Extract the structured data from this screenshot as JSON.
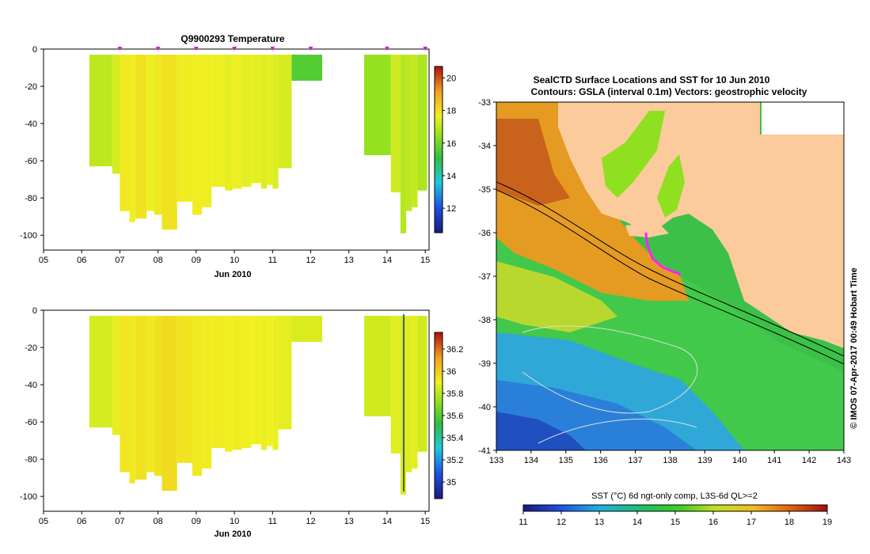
{
  "chart_data": [
    {
      "type": "heatmap",
      "title": "Q9900293  Temperature",
      "xlabel": "Jun 2010",
      "ylabel": "",
      "xticks": [
        "05",
        "06",
        "07",
        "08",
        "09",
        "10",
        "11",
        "12",
        "13",
        "14",
        "15"
      ],
      "xlim": [
        5,
        15.1
      ],
      "ylim": [
        -108,
        0
      ],
      "yticks": [
        "0",
        "-20",
        "-40",
        "-60",
        "-80",
        "-100"
      ],
      "ytick_values": [
        0,
        -20,
        -40,
        -60,
        -80,
        -100
      ],
      "colorbar": {
        "min": 10.5,
        "max": 20.7,
        "ticks": [
          "12",
          "14",
          "16",
          "18",
          "20"
        ],
        "tick_values": [
          12,
          14,
          16,
          18,
          20
        ]
      },
      "markers": [
        7,
        8,
        9,
        10,
        11,
        12,
        14,
        15
      ],
      "profiles": [
        {
          "x0": 6.2,
          "x1": 6.8,
          "depth": 63,
          "value": 17.0
        },
        {
          "x0": 6.8,
          "x1": 7.0,
          "depth": 67,
          "value": 17.3
        },
        {
          "x0": 7.0,
          "x1": 7.25,
          "depth": 87,
          "value": 17.8
        },
        {
          "x0": 7.25,
          "x1": 7.4,
          "depth": 93,
          "value": 17.6
        },
        {
          "x0": 7.4,
          "x1": 7.7,
          "depth": 91,
          "value": 17.9
        },
        {
          "x0": 7.7,
          "x1": 7.9,
          "depth": 87,
          "value": 17.6
        },
        {
          "x0": 7.9,
          "x1": 8.1,
          "depth": 89,
          "value": 17.8
        },
        {
          "x0": 8.1,
          "x1": 8.5,
          "depth": 97,
          "value": 17.9
        },
        {
          "x0": 8.5,
          "x1": 8.9,
          "depth": 82,
          "value": 17.7
        },
        {
          "x0": 8.9,
          "x1": 9.15,
          "depth": 89,
          "value": 17.7
        },
        {
          "x0": 9.15,
          "x1": 9.4,
          "depth": 85,
          "value": 17.6
        },
        {
          "x0": 9.4,
          "x1": 9.75,
          "depth": 74,
          "value": 17.6
        },
        {
          "x0": 9.75,
          "x1": 9.95,
          "depth": 76,
          "value": 17.5
        },
        {
          "x0": 9.95,
          "x1": 10.2,
          "depth": 75,
          "value": 17.6
        },
        {
          "x0": 10.2,
          "x1": 10.45,
          "depth": 74,
          "value": 17.5
        },
        {
          "x0": 10.45,
          "x1": 10.7,
          "depth": 72,
          "value": 17.5
        },
        {
          "x0": 10.7,
          "x1": 10.85,
          "depth": 75,
          "value": 17.4
        },
        {
          "x0": 10.85,
          "x1": 11.0,
          "depth": 73,
          "value": 17.5
        },
        {
          "x0": 11.0,
          "x1": 11.15,
          "depth": 75,
          "value": 17.4
        },
        {
          "x0": 11.15,
          "x1": 11.5,
          "depth": 64,
          "value": 17.3
        },
        {
          "x0": 11.5,
          "x1": 12.3,
          "depth": 17,
          "value": 15.6
        },
        {
          "x0": 13.4,
          "x1": 14.1,
          "depth": 57,
          "value": 16.5
        },
        {
          "x0": 14.1,
          "x1": 14.35,
          "depth": 77,
          "value": 17.2
        },
        {
          "x0": 14.35,
          "x1": 14.5,
          "depth": 99,
          "value": 16.9
        },
        {
          "x0": 14.5,
          "x1": 14.65,
          "depth": 87,
          "value": 17.0
        },
        {
          "x0": 14.65,
          "x1": 14.8,
          "depth": 85,
          "value": 17.1
        },
        {
          "x0": 14.8,
          "x1": 15.05,
          "depth": 76,
          "value": 16.8
        }
      ]
    },
    {
      "type": "heatmap",
      "title": "",
      "xlabel": "Jun 2010",
      "ylabel": "",
      "xticks": [
        "05",
        "06",
        "07",
        "08",
        "09",
        "10",
        "11",
        "12",
        "13",
        "14",
        "15"
      ],
      "xlim": [
        5,
        15.1
      ],
      "ylim": [
        -108,
        0
      ],
      "yticks": [
        "0",
        "-20",
        "-40",
        "-60",
        "-80",
        "-100"
      ],
      "ytick_values": [
        0,
        -20,
        -40,
        -60,
        -80,
        -100
      ],
      "colorbar": {
        "min": 34.85,
        "max": 36.35,
        "ticks": [
          "35",
          "35.2",
          "35.4",
          "35.6",
          "35.8",
          "36",
          "36.2"
        ],
        "tick_values": [
          35,
          35.2,
          35.4,
          35.6,
          35.8,
          36,
          36.2
        ]
      },
      "profiles": [
        {
          "x0": 6.2,
          "x1": 6.8,
          "depth": 63,
          "value": 35.85
        },
        {
          "x0": 6.8,
          "x1": 7.0,
          "depth": 67,
          "value": 35.88
        },
        {
          "x0": 7.0,
          "x1": 7.25,
          "depth": 87,
          "value": 35.93
        },
        {
          "x0": 7.25,
          "x1": 7.4,
          "depth": 93,
          "value": 35.92
        },
        {
          "x0": 7.4,
          "x1": 7.7,
          "depth": 91,
          "value": 35.94
        },
        {
          "x0": 7.7,
          "x1": 7.9,
          "depth": 87,
          "value": 35.92
        },
        {
          "x0": 7.9,
          "x1": 8.1,
          "depth": 89,
          "value": 35.94
        },
        {
          "x0": 8.1,
          "x1": 8.5,
          "depth": 97,
          "value": 35.96
        },
        {
          "x0": 8.5,
          "x1": 8.9,
          "depth": 82,
          "value": 35.93
        },
        {
          "x0": 8.9,
          "x1": 9.15,
          "depth": 89,
          "value": 35.92
        },
        {
          "x0": 9.15,
          "x1": 9.4,
          "depth": 85,
          "value": 35.91
        },
        {
          "x0": 9.4,
          "x1": 9.75,
          "depth": 74,
          "value": 35.91
        },
        {
          "x0": 9.75,
          "x1": 9.95,
          "depth": 76,
          "value": 35.9
        },
        {
          "x0": 9.95,
          "x1": 10.2,
          "depth": 75,
          "value": 35.91
        },
        {
          "x0": 10.2,
          "x1": 10.45,
          "depth": 74,
          "value": 35.9
        },
        {
          "x0": 10.45,
          "x1": 10.7,
          "depth": 72,
          "value": 35.9
        },
        {
          "x0": 10.7,
          "x1": 10.85,
          "depth": 75,
          "value": 35.89
        },
        {
          "x0": 10.85,
          "x1": 11.0,
          "depth": 73,
          "value": 35.9
        },
        {
          "x0": 11.0,
          "x1": 11.15,
          "depth": 75,
          "value": 35.89
        },
        {
          "x0": 11.15,
          "x1": 11.5,
          "depth": 64,
          "value": 35.88
        },
        {
          "x0": 11.5,
          "x1": 12.3,
          "depth": 17,
          "value": 35.86
        },
        {
          "x0": 13.4,
          "x1": 14.1,
          "depth": 57,
          "value": 35.84
        },
        {
          "x0": 14.1,
          "x1": 14.35,
          "depth": 77,
          "value": 35.87
        },
        {
          "x0": 14.35,
          "x1": 14.5,
          "depth": 99,
          "value": 35.85
        },
        {
          "x0": 14.5,
          "x1": 14.65,
          "depth": 87,
          "value": 35.87
        },
        {
          "x0": 14.65,
          "x1": 14.8,
          "depth": 85,
          "value": 35.88
        },
        {
          "x0": 14.8,
          "x1": 15.05,
          "depth": 76,
          "value": 35.84
        }
      ]
    },
    {
      "type": "heatmap",
      "title": "SealCTD Surface Locations and SST for 10 Jun 2010",
      "subtitle": "Contours: GSLA (interval 0.1m) Vectors: geostrophic velocity",
      "xlim": [
        133,
        143
      ],
      "ylim": [
        -41,
        -33
      ],
      "xticks": [
        "133",
        "134",
        "135",
        "136",
        "137",
        "138",
        "139",
        "140",
        "141",
        "142",
        "143"
      ],
      "yticks": [
        "-33",
        "-34",
        "-35",
        "-36",
        "-37",
        "-38",
        "-39",
        "-40",
        "-41"
      ],
      "colorbar": {
        "label": "SST (°C) 6d ngt-only comp, L3S-6d QL>=2",
        "min": 11,
        "max": 19,
        "ticks": [
          "11",
          "12",
          "13",
          "14",
          "15",
          "16",
          "17",
          "18",
          "19"
        ]
      },
      "sidebar_credit": "© IMOS 07-Apr-2017 00:49 Hobart Time",
      "track": [
        [
          137.3,
          -36.0
        ],
        [
          137.35,
          -36.3
        ],
        [
          137.5,
          -36.6
        ],
        [
          137.8,
          -36.8
        ],
        [
          138.1,
          -36.9
        ],
        [
          138.3,
          -36.95
        ]
      ]
    }
  ]
}
